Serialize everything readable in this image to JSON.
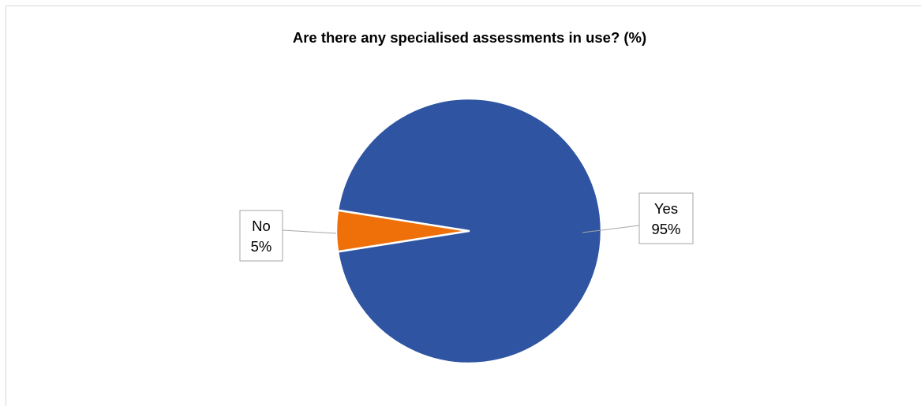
{
  "chart_data": {
    "type": "pie",
    "title": "Are there any specialised assessments in use? (%)",
    "categories": [
      "Yes",
      "No"
    ],
    "values": [
      95,
      5
    ],
    "value_labels": [
      "95%",
      "5%"
    ],
    "colors": [
      "#2f55a2",
      "#ef7008"
    ],
    "legend": "none"
  }
}
